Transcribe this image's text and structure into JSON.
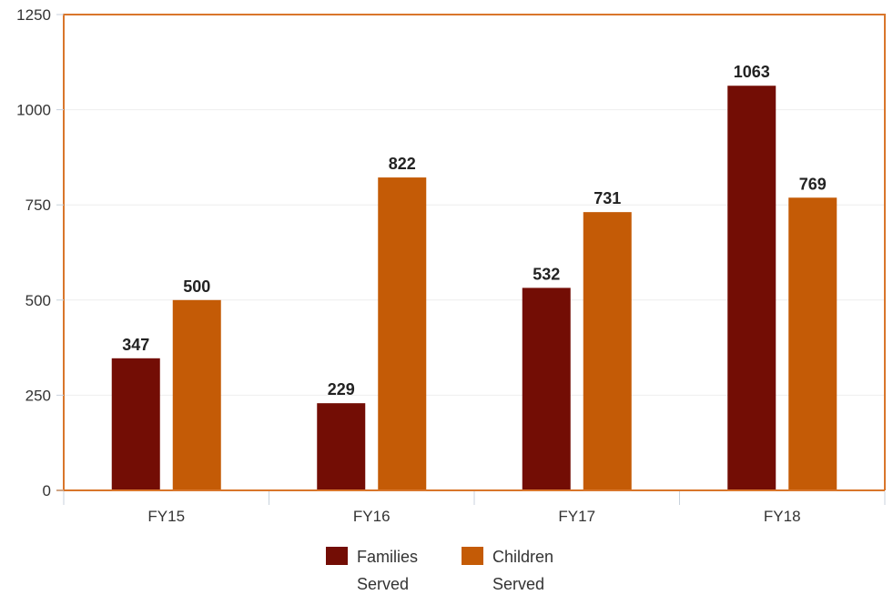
{
  "chart_data": {
    "type": "bar",
    "categories": [
      "FY15",
      "FY16",
      "FY17",
      "FY18"
    ],
    "series": [
      {
        "name": "Families Served",
        "legend_lines": [
          "Families",
          "Served"
        ],
        "values": [
          347,
          229,
          532,
          1063
        ],
        "color": "#730d05"
      },
      {
        "name": "Children Served",
        "legend_lines": [
          "Children",
          "Served"
        ],
        "values": [
          500,
          822,
          731,
          769
        ],
        "color": "#c45b06"
      }
    ],
    "yticks": [
      "0",
      "250",
      "500",
      "750",
      "1000",
      "1250"
    ],
    "ylim": [
      0,
      1250
    ],
    "title": "",
    "xlabel": "",
    "ylabel": "",
    "grid": true,
    "legend_position": "bottom-center",
    "frame_color": "#d9762b"
  }
}
